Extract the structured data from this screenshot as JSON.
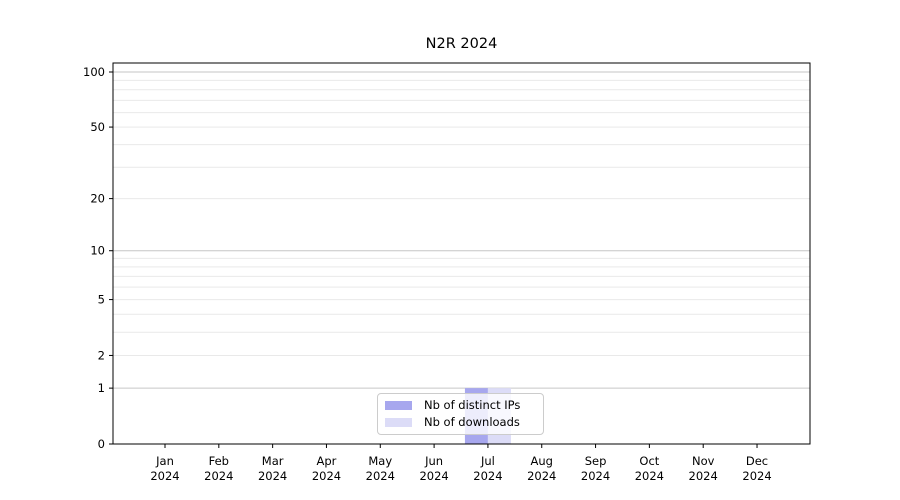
{
  "figure": {
    "background": "#ffffff"
  },
  "chart_data": {
    "type": "bar",
    "title": "N2R 2024",
    "categories": [
      "Jan 2024",
      "Feb 2024",
      "Mar 2024",
      "Apr 2024",
      "May 2024",
      "Jun 2024",
      "Jul 2024",
      "Aug 2024",
      "Sep 2024",
      "Oct 2024",
      "Nov 2024",
      "Dec 2024"
    ],
    "x_tick_month_line": [
      "Jan",
      "Feb",
      "Mar",
      "Apr",
      "May",
      "Jun",
      "Jul",
      "Aug",
      "Sep",
      "Oct",
      "Nov",
      "Dec"
    ],
    "x_tick_year_line": "2024",
    "series": [
      {
        "name": "Nb of distinct IPs",
        "color": "#a7a7ee",
        "values": [
          0,
          0,
          0,
          0,
          0,
          0,
          1,
          0,
          0,
          0,
          0,
          0
        ]
      },
      {
        "name": "Nb of downloads",
        "color": "#dcdcf7",
        "values": [
          0,
          0,
          0,
          0,
          0,
          0,
          1,
          0,
          0,
          0,
          0,
          0
        ]
      }
    ],
    "xlabel": "",
    "ylabel": "",
    "yscale": "log1p",
    "ylim": [
      0,
      112
    ],
    "y_major_ticks": [
      0,
      1,
      2,
      5,
      10,
      20,
      50,
      100
    ],
    "y_gridlines_major": [
      1,
      10,
      100
    ],
    "y_gridlines_minor": [
      2,
      3,
      4,
      5,
      6,
      7,
      8,
      9,
      20,
      30,
      40,
      50,
      60,
      70,
      80,
      90
    ],
    "grid": "horizontal",
    "legend": {
      "position": "lower center",
      "entries": [
        "Nb of distinct IPs",
        "Nb of downloads"
      ]
    },
    "colors": {
      "axis": "#000000",
      "text": "#000000",
      "grid_major": "#c6c6c6",
      "grid_minor": "#e9e9e9",
      "legend_border": "#cccccc"
    }
  }
}
